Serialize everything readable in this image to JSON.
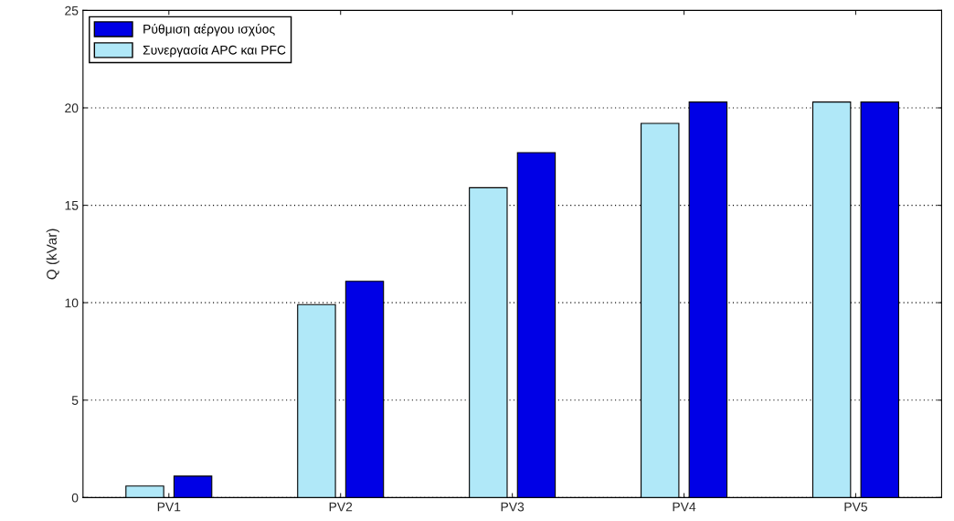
{
  "chart_data": {
    "type": "bar",
    "ylabel": "Q (kVar)",
    "categories": [
      "PV1",
      "PV2",
      "PV3",
      "PV4",
      "PV5"
    ],
    "series": [
      {
        "name": "Συνεργασία APC και PFC",
        "color": "#b0e8f8",
        "values": [
          0.59,
          9.9,
          15.9,
          19.2,
          20.3
        ]
      },
      {
        "name": "Ρύθμιση αέργου ισχύος",
        "color": "#0000e6",
        "values": [
          1.1,
          11.1,
          17.7,
          20.3,
          20.3
        ]
      }
    ],
    "ylim": [
      0,
      25
    ],
    "yticks": [
      0,
      5,
      10,
      15,
      20,
      25
    ],
    "grid": "y",
    "legend": "top left"
  }
}
